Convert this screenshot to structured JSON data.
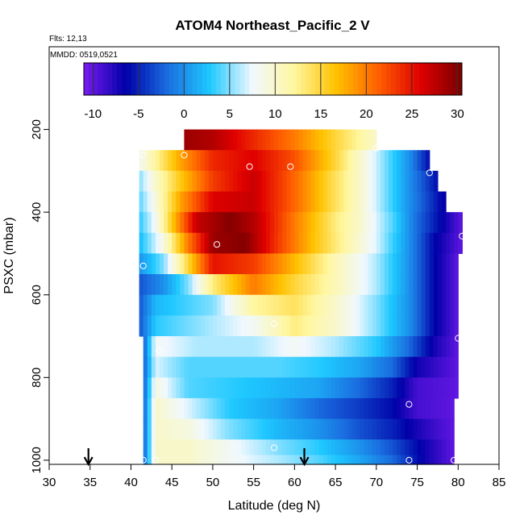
{
  "chart_data": {
    "type": "heatmap",
    "title": "ATOM4 Northeast_Pacific_2 V",
    "subtitle_lines": [
      "Flts: 12,13",
      "MMDD: 0519,0521"
    ],
    "xlabel": "Latitude (deg N)",
    "ylabel": "PSXC (mbar)",
    "xlim": [
      30,
      85
    ],
    "ylim": [
      1010,
      0
    ],
    "x_ticks": [
      30,
      35,
      40,
      45,
      50,
      55,
      60,
      65,
      70,
      75,
      80,
      85
    ],
    "y_ticks": [
      200,
      400,
      600,
      800,
      1000
    ],
    "colorbar": {
      "range": [
        -11,
        30.5
      ],
      "ticks": [
        -10,
        -5,
        0,
        5,
        10,
        15,
        20,
        25,
        30
      ]
    },
    "colors": {
      "scale": [
        "#7a1cf0",
        "#0000a8",
        "#1a6fe0",
        "#1ec8ff",
        "#f0f8ff",
        "#fff7a0",
        "#ffc200",
        "#ff6000",
        "#e00000",
        "#7a0000"
      ]
    },
    "pressure_bins_mbar": [
      225,
      275,
      325,
      375,
      425,
      475,
      525,
      575,
      625,
      675,
      725,
      775,
      825,
      875,
      925,
      975,
      1000
    ],
    "profiles": [
      {
        "bin": 225,
        "lat_range": [
          46.5,
          70
        ],
        "anchors": [
          [
            46.5,
            29
          ],
          [
            50,
            28
          ],
          [
            55,
            24
          ],
          [
            60,
            20
          ],
          [
            65,
            15
          ],
          [
            70,
            10
          ]
        ]
      },
      {
        "bin": 275,
        "lat_range": [
          41,
          76.5
        ],
        "anchors": [
          [
            41,
            8
          ],
          [
            43,
            12
          ],
          [
            46,
            18
          ],
          [
            50,
            24
          ],
          [
            55,
            26
          ],
          [
            60,
            22
          ],
          [
            65,
            15
          ],
          [
            68,
            10
          ],
          [
            71,
            5
          ],
          [
            74,
            0
          ],
          [
            76.5,
            -6
          ]
        ]
      },
      {
        "bin": 325,
        "lat_range": [
          41,
          77.5
        ],
        "anchors": [
          [
            41,
            5
          ],
          [
            43,
            10
          ],
          [
            46,
            16
          ],
          [
            50,
            23
          ],
          [
            55,
            27
          ],
          [
            60,
            21
          ],
          [
            65,
            14
          ],
          [
            68,
            10
          ],
          [
            71,
            5
          ],
          [
            74,
            0
          ],
          [
            77.5,
            -6
          ]
        ]
      },
      {
        "bin": 375,
        "lat_range": [
          41,
          78.5
        ],
        "anchors": [
          [
            41,
            4
          ],
          [
            43,
            9
          ],
          [
            46,
            18
          ],
          [
            50,
            26
          ],
          [
            55,
            27
          ],
          [
            60,
            21
          ],
          [
            65,
            14
          ],
          [
            68,
            10
          ],
          [
            71,
            5
          ],
          [
            74,
            0
          ],
          [
            78.5,
            -7
          ]
        ]
      },
      {
        "bin": 425,
        "lat_range": [
          41,
          80.5
        ],
        "anchors": [
          [
            41,
            3
          ],
          [
            43,
            8
          ],
          [
            45,
            16
          ],
          [
            48,
            27
          ],
          [
            52,
            30
          ],
          [
            55,
            28
          ],
          [
            60,
            20
          ],
          [
            65,
            13
          ],
          [
            68,
            10
          ],
          [
            72,
            4
          ],
          [
            75,
            -2
          ],
          [
            80.5,
            -10
          ]
        ]
      },
      {
        "bin": 475,
        "lat_range": [
          41,
          80.5
        ],
        "anchors": [
          [
            41,
            2
          ],
          [
            44,
            9
          ],
          [
            47,
            20
          ],
          [
            50,
            29
          ],
          [
            54,
            30
          ],
          [
            58,
            23
          ],
          [
            62,
            17
          ],
          [
            66,
            12
          ],
          [
            70,
            7
          ],
          [
            74,
            0
          ],
          [
            77,
            -6
          ],
          [
            80.5,
            -10
          ]
        ]
      },
      {
        "bin": 525,
        "lat_range": [
          41,
          80
        ],
        "anchors": [
          [
            41,
            0
          ],
          [
            44,
            5
          ],
          [
            47,
            15
          ],
          [
            50,
            25
          ],
          [
            55,
            23
          ],
          [
            60,
            17
          ],
          [
            65,
            11
          ],
          [
            70,
            6
          ],
          [
            74,
            0
          ],
          [
            77,
            -6
          ],
          [
            80,
            -10
          ]
        ]
      },
      {
        "bin": 575,
        "lat_range": [
          41,
          80
        ],
        "anchors": [
          [
            41,
            -3
          ],
          [
            44,
            0
          ],
          [
            47,
            5
          ],
          [
            50,
            13
          ],
          [
            55,
            20
          ],
          [
            60,
            15
          ],
          [
            65,
            11
          ],
          [
            70,
            6
          ],
          [
            74,
            0
          ],
          [
            77,
            -6
          ],
          [
            80,
            -10
          ]
        ]
      },
      {
        "bin": 625,
        "lat_range": [
          41,
          80
        ],
        "anchors": [
          [
            41,
            -3
          ],
          [
            43,
            2
          ],
          [
            50,
            5
          ],
          [
            55,
            12
          ],
          [
            60,
            14
          ],
          [
            65,
            10
          ],
          [
            70,
            5
          ],
          [
            74,
            0
          ],
          [
            77,
            -6
          ],
          [
            80,
            -10
          ]
        ]
      },
      {
        "bin": 675,
        "lat_range": [
          41,
          80
        ],
        "anchors": [
          [
            41,
            -3
          ],
          [
            43,
            3
          ],
          [
            50,
            6
          ],
          [
            55,
            8
          ],
          [
            60,
            13
          ],
          [
            65,
            10
          ],
          [
            70,
            5
          ],
          [
            74,
            0
          ],
          [
            77,
            -6
          ],
          [
            80,
            -10
          ]
        ]
      },
      {
        "bin": 725,
        "lat_range": [
          41.5,
          80
        ],
        "anchors": [
          [
            41.5,
            -3
          ],
          [
            43,
            8
          ],
          [
            48,
            6
          ],
          [
            55,
            6
          ],
          [
            60,
            8
          ],
          [
            65,
            6
          ],
          [
            70,
            3
          ],
          [
            74,
            -2
          ],
          [
            77,
            -7
          ],
          [
            80,
            -10
          ]
        ]
      },
      {
        "bin": 775,
        "lat_range": [
          41.5,
          80
        ],
        "anchors": [
          [
            41.5,
            -3
          ],
          [
            43,
            7
          ],
          [
            47,
            4
          ],
          [
            53,
            4
          ],
          [
            58,
            4
          ],
          [
            63,
            3
          ],
          [
            68,
            1
          ],
          [
            72,
            -2
          ],
          [
            75,
            -7
          ],
          [
            80,
            -10
          ]
        ]
      },
      {
        "bin": 825,
        "lat_range": [
          41.5,
          80
        ],
        "anchors": [
          [
            41.5,
            -3
          ],
          [
            43,
            9
          ],
          [
            47,
            4
          ],
          [
            53,
            3
          ],
          [
            58,
            2
          ],
          [
            63,
            1
          ],
          [
            68,
            -2
          ],
          [
            72,
            -5
          ],
          [
            75,
            -9
          ],
          [
            80,
            -10
          ]
        ]
      },
      {
        "bin": 875,
        "lat_range": [
          41.5,
          79.5
        ],
        "anchors": [
          [
            41.5,
            -3
          ],
          [
            43,
            10
          ],
          [
            47,
            7
          ],
          [
            52,
            3
          ],
          [
            58,
            1
          ],
          [
            63,
            -2
          ],
          [
            68,
            -4
          ],
          [
            72,
            -6
          ],
          [
            75,
            -9
          ],
          [
            79.5,
            -10
          ]
        ]
      },
      {
        "bin": 925,
        "lat_range": [
          41.5,
          79.5
        ],
        "anchors": [
          [
            41.5,
            -3
          ],
          [
            43,
            10
          ],
          [
            47,
            9
          ],
          [
            52,
            5
          ],
          [
            58,
            2
          ],
          [
            63,
            0
          ],
          [
            68,
            -3
          ],
          [
            72,
            -5
          ],
          [
            76,
            -8
          ],
          [
            79.5,
            -10
          ]
        ]
      },
      {
        "bin": 975,
        "lat_range": [
          41.5,
          79.5
        ],
        "anchors": [
          [
            41.5,
            -3
          ],
          [
            43,
            10
          ],
          [
            47,
            10
          ],
          [
            52,
            8
          ],
          [
            58,
            5
          ],
          [
            63,
            3
          ],
          [
            68,
            0
          ],
          [
            72,
            -3
          ],
          [
            76,
            -7
          ],
          [
            79.5,
            -10
          ]
        ]
      },
      {
        "bin": 1000,
        "lat_range": [
          41.5,
          79.5
        ],
        "anchors": [
          [
            41.5,
            -3
          ],
          [
            43,
            10
          ],
          [
            47,
            10
          ],
          [
            52,
            8
          ],
          [
            58,
            6
          ],
          [
            63,
            4
          ],
          [
            68,
            1
          ],
          [
            72,
            -2
          ],
          [
            76,
            -7
          ],
          [
            79.5,
            -10
          ]
        ]
      }
    ],
    "markers": [
      [
        46.5,
        262
      ],
      [
        54.5,
        290
      ],
      [
        59.5,
        290
      ],
      [
        76.5,
        305
      ],
      [
        41.5,
        262
      ],
      [
        70,
        245
      ],
      [
        50.5,
        478
      ],
      [
        80.5,
        458
      ],
      [
        41.5,
        530
      ],
      [
        57.5,
        670
      ],
      [
        80,
        705
      ],
      [
        43.5,
        735
      ],
      [
        74,
        865
      ],
      [
        57.5,
        970
      ],
      [
        41.5,
        1000
      ],
      [
        43,
        1000
      ],
      [
        74,
        1000
      ],
      [
        79.5,
        1000
      ]
    ],
    "arrows_lat": [
      34.8,
      61.2
    ]
  }
}
